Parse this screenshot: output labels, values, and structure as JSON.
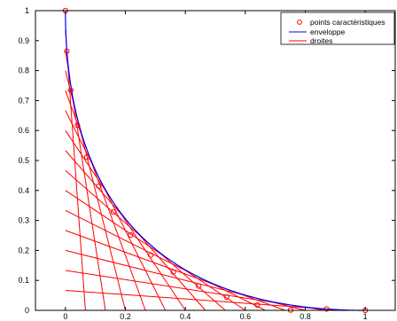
{
  "chart_data": {
    "type": "line",
    "title": "",
    "xlabel": "",
    "ylabel": "",
    "xlim": [
      -0.1,
      1.1
    ],
    "ylim": [
      0,
      1
    ],
    "x_ticks": [
      0,
      0.2,
      0.4,
      0.6,
      0.8,
      1
    ],
    "y_ticks": [
      0,
      0.1,
      0.2,
      0.3,
      0.4,
      0.5,
      0.6,
      0.7,
      0.8,
      0.9,
      1
    ],
    "x_tick_labels": [
      "0",
      "0.2",
      "0.4",
      "0.6",
      "0.8",
      "1"
    ],
    "y_tick_labels": [
      "0",
      "0.1",
      "0.2",
      "0.3",
      "0.4",
      "0.5",
      "0.6",
      "0.7",
      "0.8",
      "0.9",
      "1"
    ],
    "grid": false,
    "legend": {
      "position": "top-right",
      "entries": [
        {
          "label": "points caractéristiques",
          "color": "#ff0000",
          "marker": "circle"
        },
        {
          "label": "enveloppe",
          "color": "#0000ff",
          "marker": "line"
        },
        {
          "label": "droites",
          "color": "#ff0000",
          "marker": "line"
        }
      ]
    },
    "series": [
      {
        "name": "points caractéristiques",
        "kind": "markers",
        "color": "#ff0000",
        "points": [
          [
            0,
            1
          ],
          [
            0.0046,
            0.8649
          ],
          [
            0.0178,
            0.7347
          ],
          [
            0.04,
            0.6178
          ],
          [
            0.0711,
            0.5111
          ],
          [
            0.1111,
            0.4144
          ],
          [
            0.16,
            0.3278
          ],
          [
            0.2178,
            0.2511
          ],
          [
            0.2844,
            0.1844
          ],
          [
            0.36,
            0.1278
          ],
          [
            0.4444,
            0.0811
          ],
          [
            0.5378,
            0.0444
          ],
          [
            0.64,
            0.0178
          ],
          [
            0.7511,
            0.0011
          ],
          [
            0.8711,
            0.0046
          ],
          [
            1,
            0
          ]
        ]
      },
      {
        "name": "enveloppe",
        "kind": "curve",
        "color": "#0000ff",
        "equation": "sqrt(x) + sqrt(y) = 1"
      },
      {
        "name": "droites",
        "kind": "segments",
        "color": "#ff0000",
        "family": "segments from (0, 1 - t) to (t, 0)",
        "t_values": [
          0.0667,
          0.1333,
          0.2,
          0.2667,
          0.3333,
          0.4,
          0.4667,
          0.5333,
          0.6,
          0.6667,
          0.7333,
          0.8,
          0.8667,
          0.9333,
          1
        ]
      }
    ]
  }
}
